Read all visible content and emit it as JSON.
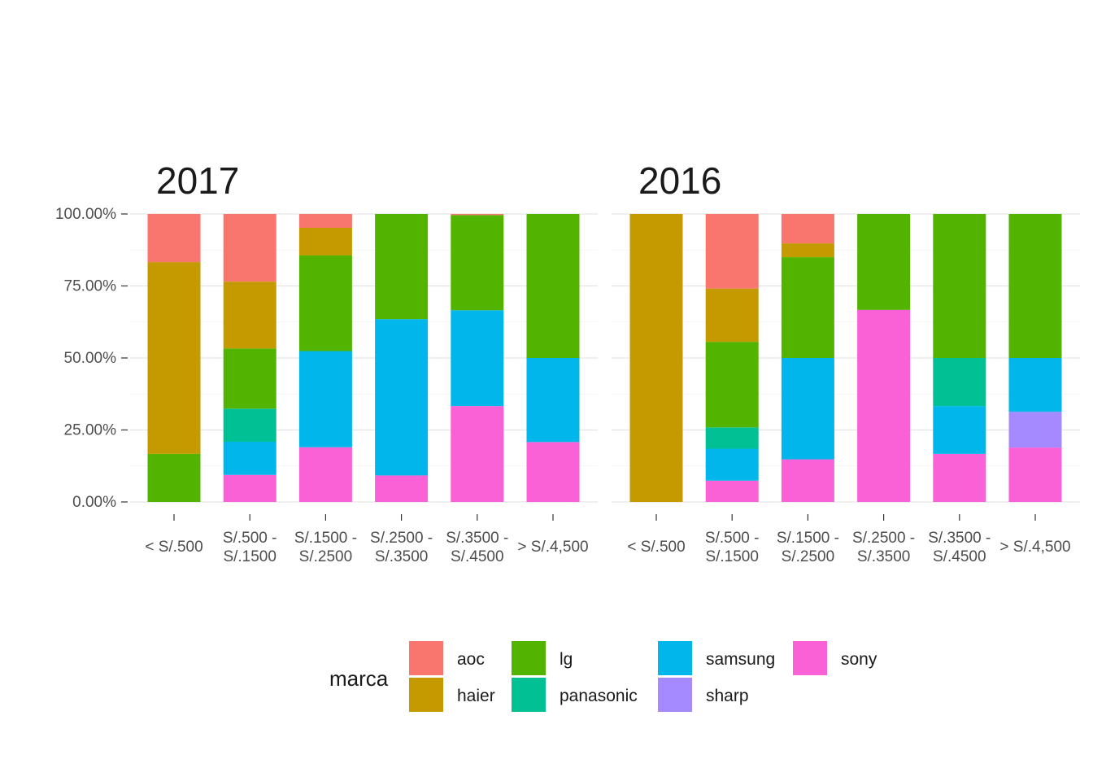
{
  "chart_data": {
    "type": "bar",
    "stacked": "percent",
    "y_ticks": [
      "0.00%",
      "25.00%",
      "50.00%",
      "75.00%",
      "100.00%"
    ],
    "ylim": [
      0,
      100
    ],
    "categories": [
      [
        "< S/.500"
      ],
      [
        "S/.500 -",
        "S/.1500"
      ],
      [
        "S/.1500 -",
        "S/.2500"
      ],
      [
        "S/.2500 -",
        "S/.3500"
      ],
      [
        "S/.3500 -",
        "S/.4500"
      ],
      [
        "> S/.4,500"
      ]
    ],
    "legend": {
      "title": "marca",
      "position": "bottom",
      "items": [
        {
          "name": "aoc",
          "color": "#F8766D"
        },
        {
          "name": "haier",
          "color": "#C49A00"
        },
        {
          "name": "lg",
          "color": "#53B400"
        },
        {
          "name": "panasonic",
          "color": "#00C094"
        },
        {
          "name": "samsung",
          "color": "#00B6EB"
        },
        {
          "name": "sharp",
          "color": "#A58AFF"
        },
        {
          "name": "sony",
          "color": "#FB61D7"
        }
      ]
    },
    "panels": [
      {
        "title": "2017",
        "series": [
          {
            "name": "sony",
            "values": [
              0,
              9.4,
              19.0,
              9.2,
              33.3,
              20.8
            ]
          },
          {
            "name": "sharp",
            "values": [
              0,
              0,
              0,
              0,
              0,
              0
            ]
          },
          {
            "name": "samsung",
            "values": [
              0,
              11.5,
              33.4,
              54.3,
              33.3,
              29.2
            ]
          },
          {
            "name": "panasonic",
            "values": [
              0,
              11.5,
              0,
              0,
              0,
              0
            ]
          },
          {
            "name": "lg",
            "values": [
              16.7,
              20.9,
              33.2,
              36.5,
              33.0,
              50.0
            ]
          },
          {
            "name": "haier",
            "values": [
              66.6,
              23.2,
              9.6,
              0,
              0,
              0
            ]
          },
          {
            "name": "aoc",
            "values": [
              16.7,
              23.5,
              4.8,
              0,
              0.4,
              0
            ]
          }
        ]
      },
      {
        "title": "2016",
        "series": [
          {
            "name": "sony",
            "values": [
              0,
              7.4,
              14.8,
              66.7,
              16.7,
              18.9
            ]
          },
          {
            "name": "sharp",
            "values": [
              0,
              0,
              0,
              0,
              0,
              12.4
            ]
          },
          {
            "name": "samsung",
            "values": [
              0,
              11.1,
              35.2,
              0,
              16.6,
              18.7
            ]
          },
          {
            "name": "panasonic",
            "values": [
              0,
              7.4,
              0,
              0,
              16.7,
              0
            ]
          },
          {
            "name": "lg",
            "values": [
              0,
              29.7,
              35.0,
              33.3,
              50.0,
              50.0
            ]
          },
          {
            "name": "haier",
            "values": [
              100,
              18.5,
              4.8,
              0,
              0,
              0
            ]
          },
          {
            "name": "aoc",
            "values": [
              0,
              25.9,
              10.2,
              0,
              0,
              0
            ]
          }
        ]
      }
    ]
  }
}
